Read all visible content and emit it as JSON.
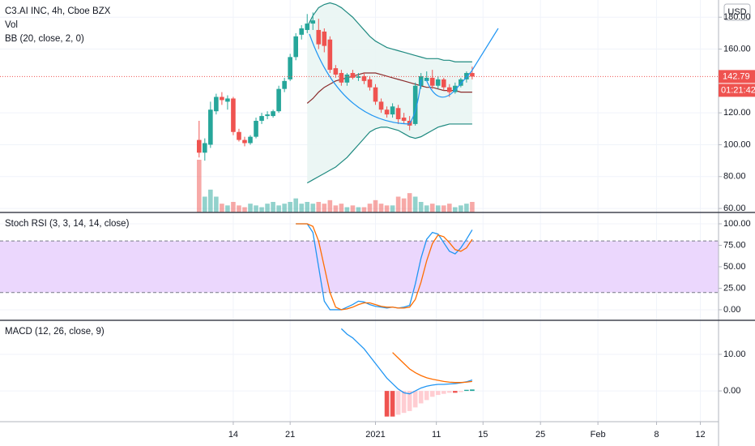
{
  "chart_data": [
    {
      "type": "candlestick",
      "title": "C3.AI INC, 4h, Cboe BZX",
      "currency": "USD",
      "up_color": "#26a69a",
      "down_color": "#ef5350",
      "xlim": [
        -35,
        91.3
      ],
      "ylim": [
        57.5,
        190.8
      ],
      "yticks": [
        {
          "value": 60,
          "label": "60.00"
        },
        {
          "value": 80,
          "label": "80.00"
        },
        {
          "value": 100,
          "label": "100.00"
        },
        {
          "value": 120,
          "label": "120.00"
        },
        {
          "value": 160,
          "label": "160.00"
        },
        {
          "value": 180,
          "label": "180.00"
        }
      ],
      "open": [
        103,
        95,
        100,
        121,
        130,
        127,
        129,
        108,
        103,
        101,
        105,
        115,
        118,
        118,
        121,
        135,
        141,
        155,
        169,
        172,
        176,
        172,
        171,
        166,
        148,
        145,
        139,
        145,
        142,
        143,
        141,
        136,
        127,
        122,
        119,
        123,
        117,
        115,
        113,
        137,
        140,
        142,
        137,
        141,
        136,
        133,
        137,
        141,
        145
      ],
      "high": [
        115,
        104,
        127,
        132,
        133,
        131,
        130,
        110,
        105,
        106,
        117,
        120,
        121,
        122,
        137,
        142,
        157,
        170,
        175,
        182,
        183,
        179,
        173,
        168,
        150,
        147,
        145,
        147,
        145,
        145,
        143,
        138,
        129,
        124,
        126,
        125,
        120,
        118,
        139,
        145,
        146,
        147,
        143,
        142,
        138,
        139,
        142,
        146,
        149
      ],
      "low": [
        92,
        90,
        98,
        119,
        125,
        122,
        106,
        102,
        99,
        100,
        104,
        113,
        116,
        117,
        120,
        133,
        140,
        153,
        166,
        170,
        172,
        160,
        158,
        145,
        142,
        137,
        137,
        141,
        140,
        138,
        134,
        125,
        120,
        117,
        117,
        113,
        113,
        109,
        112,
        135,
        140,
        135,
        135,
        134,
        130,
        132,
        136,
        139,
        141
      ],
      "close": [
        95,
        101,
        122,
        130,
        128,
        129,
        108,
        103,
        101,
        105,
        115,
        118,
        119,
        121,
        135,
        140,
        155,
        168,
        173,
        176,
        178,
        163,
        162,
        147,
        144,
        139,
        144,
        142,
        143,
        140,
        136,
        127,
        122,
        119,
        124,
        116,
        115,
        112,
        137,
        143,
        142,
        137,
        141,
        136,
        133,
        137,
        141,
        145,
        142.79
      ],
      "volume": {
        "name": "Vol",
        "values": [
          30,
          9,
          13,
          9,
          5,
          4,
          6,
          4,
          3,
          5,
          4,
          3,
          5,
          6,
          4,
          5,
          6,
          8,
          5,
          6,
          5,
          6,
          5,
          7,
          4,
          5,
          3,
          4,
          3,
          3,
          5,
          7,
          5,
          4,
          4,
          9,
          8,
          11,
          9,
          6,
          4,
          5,
          4,
          4,
          5,
          3,
          4,
          5,
          6
        ]
      },
      "bollinger": {
        "name": "BB (20, close, 2, 0)",
        "band_color": "#1f8a80",
        "basis_color": "#8b2c2c",
        "fill": "#e9f5f3",
        "upper": [
          null,
          null,
          null,
          null,
          null,
          null,
          null,
          null,
          null,
          null,
          null,
          null,
          null,
          null,
          null,
          null,
          null,
          null,
          null,
          174,
          181,
          186,
          188,
          189,
          188,
          186,
          183,
          180,
          176,
          172,
          168,
          165,
          163,
          161,
          160,
          159,
          158,
          157,
          156,
          155,
          154,
          154,
          154,
          153,
          153,
          152,
          152,
          152,
          152
        ],
        "basis": [
          null,
          null,
          null,
          null,
          null,
          null,
          null,
          null,
          null,
          null,
          null,
          null,
          null,
          null,
          null,
          null,
          null,
          null,
          null,
          126,
          129,
          133,
          136,
          138,
          140,
          141,
          142,
          143,
          144,
          145,
          145,
          145,
          144,
          143,
          142,
          141,
          140,
          139,
          138,
          137,
          136,
          136,
          135,
          134,
          134,
          134,
          133,
          133,
          133
        ],
        "lower": [
          null,
          null,
          null,
          null,
          null,
          null,
          null,
          null,
          null,
          null,
          null,
          null,
          null,
          null,
          null,
          null,
          null,
          null,
          null,
          76,
          78,
          80,
          82,
          84,
          86,
          89,
          92,
          96,
          100,
          104,
          108,
          110,
          111,
          111,
          110,
          109,
          107,
          105,
          104,
          105,
          107,
          109,
          111,
          112,
          113,
          113,
          113,
          113,
          113
        ]
      },
      "last_price": 142.79,
      "countdown": "01:21:42"
    },
    {
      "type": "line",
      "title": "Stoch RSI (3, 3, 14, 14, close)",
      "xlim": [
        -35,
        91.3
      ],
      "ylim": [
        -12.3,
        113.2
      ],
      "yticks": [
        {
          "value": 0,
          "label": "0.00"
        },
        {
          "value": 25,
          "label": "25.00"
        },
        {
          "value": 50,
          "label": "50.00"
        },
        {
          "value": 75,
          "label": "75.00"
        },
        {
          "value": 100,
          "label": "100.00"
        }
      ],
      "band": [
        20,
        80
      ],
      "band_color": "#ebd7fd",
      "series": [
        {
          "color": "#2196f3",
          "values": [
            null,
            null,
            null,
            null,
            null,
            null,
            null,
            null,
            null,
            null,
            null,
            null,
            null,
            null,
            null,
            null,
            null,
            100,
            100,
            100,
            90,
            50,
            10,
            0,
            0,
            0,
            3,
            6,
            10,
            9,
            6,
            4,
            3,
            2,
            3,
            2,
            3,
            5,
            30,
            60,
            82,
            90,
            88,
            78,
            68,
            65,
            72,
            82,
            93
          ]
        },
        {
          "color": "#ff6d00",
          "values": [
            null,
            null,
            null,
            null,
            null,
            null,
            null,
            null,
            null,
            null,
            null,
            null,
            null,
            null,
            null,
            null,
            null,
            100,
            100,
            100,
            97,
            80,
            50,
            20,
            3,
            0,
            1,
            3,
            6,
            8,
            8,
            6,
            4,
            3,
            3,
            2,
            2,
            3,
            12,
            32,
            57,
            77,
            87,
            85,
            78,
            70,
            68,
            72,
            82
          ]
        }
      ]
    },
    {
      "type": "macd",
      "title": "MACD (12, 26, close, 9)",
      "xlim": [
        -35,
        91.3
      ],
      "ylim": [
        -8.4,
        19.3
      ],
      "yticks": [
        {
          "value": 0,
          "label": "0.00"
        },
        {
          "value": 10,
          "label": "10.00"
        }
      ],
      "xticks": [
        {
          "value": 6,
          "label": "14"
        },
        {
          "value": 16,
          "label": "21"
        },
        {
          "value": 31,
          "label": "2021"
        },
        {
          "value": 41.7,
          "label": "11"
        },
        {
          "value": 49.9,
          "label": "15"
        },
        {
          "value": 60,
          "label": "25"
        },
        {
          "value": 70.1,
          "label": "Feb"
        },
        {
          "value": 80.4,
          "label": "8"
        },
        {
          "value": 88.1,
          "label": "12"
        }
      ],
      "series": [
        {
          "color": "#2196f3",
          "values": [
            null,
            null,
            null,
            null,
            null,
            null,
            null,
            null,
            null,
            null,
            null,
            null,
            null,
            null,
            null,
            null,
            null,
            null,
            null,
            null,
            null,
            null,
            null,
            null,
            null,
            17,
            15.5,
            14.5,
            13,
            11.5,
            9.5,
            7.5,
            5.5,
            3.5,
            2,
            0.5,
            -0.5,
            -0.8,
            0,
            0.8,
            1.3,
            1.6,
            1.8,
            1.8,
            1.9,
            2.0,
            2.2,
            2.5,
            3.0
          ]
        },
        {
          "color": "#ff6d00",
          "values": [
            null,
            null,
            null,
            null,
            null,
            null,
            null,
            null,
            null,
            null,
            null,
            null,
            null,
            null,
            null,
            null,
            null,
            null,
            null,
            null,
            null,
            null,
            null,
            null,
            null,
            null,
            null,
            null,
            null,
            null,
            null,
            null,
            null,
            null,
            10.5,
            9,
            7.5,
            6,
            5,
            4.2,
            3.6,
            3.2,
            2.9,
            2.6,
            2.4,
            2.3,
            2.3,
            2.4,
            2.6
          ]
        }
      ],
      "histogram": {
        "values": [
          null,
          null,
          null,
          null,
          null,
          null,
          null,
          null,
          null,
          null,
          null,
          null,
          null,
          null,
          null,
          null,
          null,
          null,
          null,
          null,
          null,
          null,
          null,
          null,
          null,
          null,
          null,
          null,
          null,
          null,
          null,
          null,
          null,
          -7,
          -7,
          -6.5,
          -6,
          -5.5,
          -4.5,
          -3.4,
          -2.5,
          -1.6,
          -1.1,
          -0.8,
          -0.5,
          -0.5,
          -0.3,
          0.3,
          0.4
        ],
        "colors": {
          "neg_falling": "#ef5350",
          "neg_rising": "#ffcdd2",
          "pos_rising": "#26a69a",
          "pos_falling": "#b2dfdb"
        }
      }
    }
  ]
}
